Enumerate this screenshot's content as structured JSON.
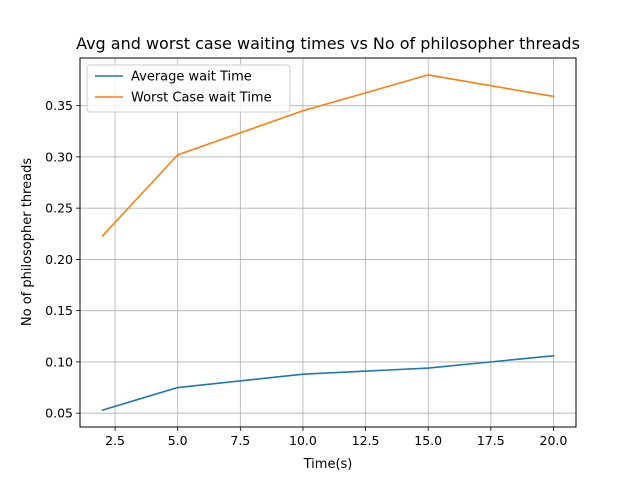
{
  "chart_data": {
    "type": "line",
    "title": "Avg and worst case waiting times vs No of philosopher threads",
    "xlabel": "Time(s)",
    "ylabel": "No of philosopher threads",
    "x": [
      2,
      5,
      10,
      15,
      20
    ],
    "xlim": [
      1.1,
      20.9
    ],
    "ylim": [
      0.0365,
      0.3965
    ],
    "xticks": [
      2.5,
      5.0,
      7.5,
      10.0,
      12.5,
      15.0,
      17.5,
      20.0
    ],
    "xtick_labels": [
      "2.5",
      "5.0",
      "7.5",
      "10.0",
      "12.5",
      "15.0",
      "17.5",
      "20.0"
    ],
    "yticks": [
      0.05,
      0.1,
      0.15,
      0.2,
      0.25,
      0.3,
      0.35
    ],
    "ytick_labels": [
      "0.05",
      "0.10",
      "0.15",
      "0.20",
      "0.25",
      "0.30",
      "0.35"
    ],
    "grid": true,
    "legend_position": "top-left",
    "series": [
      {
        "name": "Average wait Time",
        "color": "#1f77b4",
        "values": [
          0.053,
          0.075,
          0.088,
          0.094,
          0.106
        ]
      },
      {
        "name": "Worst Case wait Time",
        "color": "#ff7f0e",
        "values": [
          0.223,
          0.302,
          0.345,
          0.38,
          0.359
        ]
      }
    ]
  }
}
